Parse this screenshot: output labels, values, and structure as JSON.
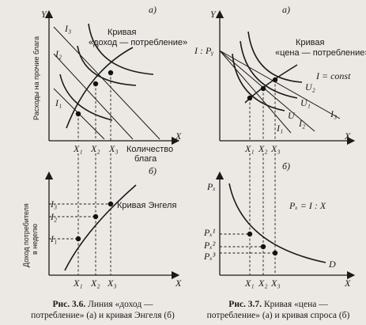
{
  "fig36": {
    "panel_a": {
      "tag": "а)",
      "y_axis": "Y",
      "x_axis": "X",
      "y_label": "Расходы на прочие блага",
      "x_label_1": "Количество",
      "x_label_2": "блага",
      "curve_label_1": "Кривая",
      "curve_label_2": "«доход — потребление»",
      "budget_lines": [
        "I₁",
        "I₂",
        "I₃"
      ],
      "x_ticks": [
        "X₁",
        "X₂",
        "X₃"
      ]
    },
    "panel_b": {
      "tag": "б)",
      "y_label_1": "Доход потребителя",
      "y_label_2": "в неделю",
      "x_axis": "X",
      "curve_label": "Кривая Энгеля",
      "y_ticks": [
        "I₁",
        "I₂",
        "I₃"
      ],
      "x_ticks": [
        "X₁",
        "X₂",
        "X₃"
      ]
    },
    "caption_num": "Рис. 3.6.",
    "caption_text_1": "Линия «доход —",
    "caption_text_2": "потребление» (а) и кривая Энгеля (б)"
  },
  "fig37": {
    "panel_a": {
      "tag": "а)",
      "y_axis": "Y",
      "x_axis": "X",
      "intercept": "I : Pᵧ",
      "curve_label_1": "Кривая",
      "curve_label_2": "«цена — потребление»",
      "constraint": "I = const",
      "budget_lines": [
        "I₁",
        "I₂",
        "I₃"
      ],
      "indiff": [
        "U",
        "U₁",
        "U₂"
      ],
      "x_ticks": [
        "X₁",
        "X₂",
        "X₃"
      ]
    },
    "panel_b": {
      "tag": "б)",
      "y_axis": "Pₓ",
      "x_axis": "X",
      "formula": "Pₓ = I : X",
      "curve_label": "D",
      "y_ticks": [
        "Pₓ¹",
        "Pₓ²",
        "Pₓ³"
      ],
      "x_ticks": [
        "X₁",
        "X₂",
        "X₃"
      ]
    },
    "caption_num": "Рис. 3.7.",
    "caption_text_1": "Кривая «цена —",
    "caption_text_2": "потребление» (а) и кривая спроса (б)"
  }
}
